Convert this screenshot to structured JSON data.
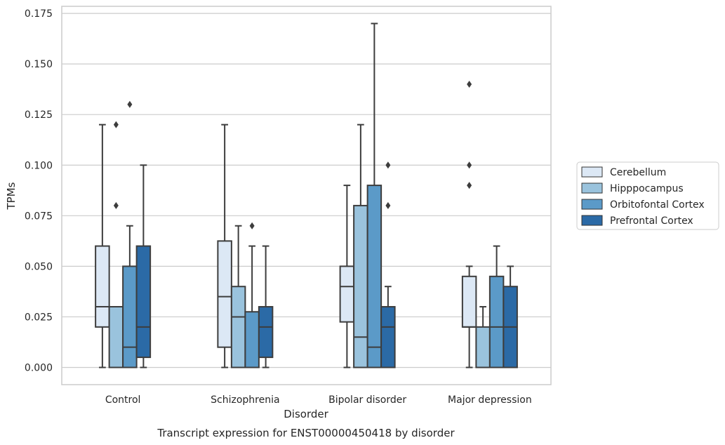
{
  "chart_data": {
    "type": "boxplot",
    "title": "",
    "caption": "Transcript expression for ENST00000450418 by disorder",
    "xlabel": "Disorder",
    "ylabel": "TPMs",
    "ylim": [
      -0.0085,
      0.1785
    ],
    "yticks": [
      "0.000",
      "0.025",
      "0.050",
      "0.075",
      "0.100",
      "0.125",
      "0.150",
      "0.175"
    ],
    "categories": [
      "Control",
      "Schizophrenia",
      "Bipolar disorder",
      "Major depression"
    ],
    "grid": true,
    "legend_position": "right",
    "series": [
      {
        "name": "Cerebellum",
        "color": "#dce8f5",
        "boxes": [
          {
            "q1": 0.02,
            "median": 0.03,
            "q3": 0.06,
            "whislo": 0.0,
            "whishi": 0.12,
            "fliers": []
          },
          {
            "q1": 0.01,
            "median": 0.035,
            "q3": 0.0625,
            "whislo": 0.0,
            "whishi": 0.12,
            "fliers": []
          },
          {
            "q1": 0.0225,
            "median": 0.04,
            "q3": 0.05,
            "whislo": 0.0,
            "whishi": 0.09,
            "fliers": []
          },
          {
            "q1": 0.02,
            "median": 0.02,
            "q3": 0.045,
            "whislo": 0.0,
            "whishi": 0.05,
            "fliers": [
              0.09,
              0.1,
              0.14
            ]
          }
        ]
      },
      {
        "name": "Hipppocampus",
        "color": "#9ac3dd",
        "boxes": [
          {
            "q1": 0.0,
            "median": 0.03,
            "q3": 0.03,
            "whislo": 0.0,
            "whishi": 0.03,
            "fliers": [
              0.08,
              0.12
            ]
          },
          {
            "q1": 0.0,
            "median": 0.025,
            "q3": 0.04,
            "whislo": 0.0,
            "whishi": 0.07,
            "fliers": []
          },
          {
            "q1": 0.0,
            "median": 0.015,
            "q3": 0.08,
            "whislo": 0.0,
            "whishi": 0.12,
            "fliers": []
          },
          {
            "q1": 0.0,
            "median": 0.0,
            "q3": 0.02,
            "whislo": 0.0,
            "whishi": 0.03,
            "fliers": []
          }
        ]
      },
      {
        "name": "Orbitofontal Cortex",
        "color": "#5b9ac8",
        "boxes": [
          {
            "q1": 0.0,
            "median": 0.01,
            "q3": 0.05,
            "whislo": 0.0,
            "whishi": 0.07,
            "fliers": [
              0.13
            ]
          },
          {
            "q1": 0.0,
            "median": 0.0,
            "q3": 0.0275,
            "whislo": 0.0,
            "whishi": 0.06,
            "fliers": [
              0.07
            ]
          },
          {
            "q1": 0.0,
            "median": 0.01,
            "q3": 0.09,
            "whislo": 0.0,
            "whishi": 0.17,
            "fliers": []
          },
          {
            "q1": 0.0,
            "median": 0.02,
            "q3": 0.045,
            "whislo": 0.0,
            "whishi": 0.06,
            "fliers": []
          }
        ]
      },
      {
        "name": "Prefrontal Cortex",
        "color": "#2b6aa6",
        "boxes": [
          {
            "q1": 0.005,
            "median": 0.02,
            "q3": 0.06,
            "whislo": 0.0,
            "whishi": 0.1,
            "fliers": []
          },
          {
            "q1": 0.005,
            "median": 0.02,
            "q3": 0.03,
            "whislo": 0.0,
            "whishi": 0.06,
            "fliers": []
          },
          {
            "q1": 0.0,
            "median": 0.02,
            "q3": 0.03,
            "whislo": 0.0,
            "whishi": 0.04,
            "fliers": [
              0.08,
              0.1
            ]
          },
          {
            "q1": 0.0,
            "median": 0.02,
            "q3": 0.04,
            "whislo": 0.0,
            "whishi": 0.05,
            "fliers": []
          }
        ]
      }
    ]
  }
}
